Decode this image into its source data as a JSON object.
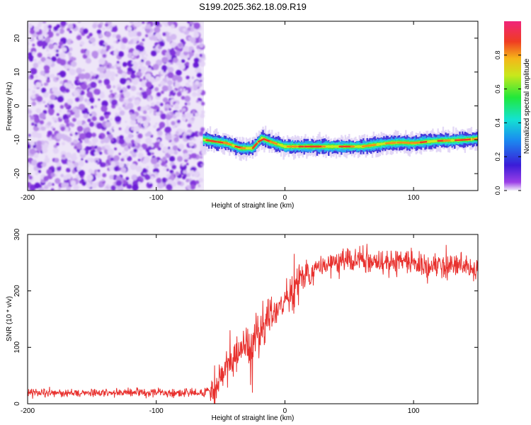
{
  "title": "S199.2025.362.18.09.R19",
  "chart_data": [
    {
      "type": "heatmap",
      "title": "S199.2025.362.18.09.R19",
      "xlabel": "Height of straight line (km)",
      "ylabel": "Frequency (Hz)",
      "xlim": [
        -200,
        150
      ],
      "ylim": [
        -25,
        25
      ],
      "x_ticks": [
        -200,
        -100,
        0,
        100
      ],
      "y_ticks": [
        -20,
        -10,
        0,
        10,
        20
      ],
      "noise_region_x": [
        -200,
        -63
      ],
      "ridge": {
        "x": [
          -63,
          -55,
          -45,
          -35,
          -25,
          -18,
          -12,
          -8,
          -4,
          0,
          5,
          10,
          20,
          30,
          40,
          50,
          60,
          70,
          80,
          90,
          100,
          110,
          120,
          130,
          140,
          150
        ],
        "y": [
          -10,
          -10.5,
          -11,
          -12.5,
          -12.5,
          -9.5,
          -10.5,
          -11,
          -11.5,
          -12,
          -12,
          -12,
          -12,
          -12,
          -12,
          -12,
          -12,
          -11.5,
          -11,
          -10.8,
          -11,
          -10.6,
          -10.3,
          -10.2,
          -10,
          -9.7
        ]
      },
      "colorbar": {
        "label": "Normalized spectral amplitude",
        "range": [
          0,
          1
        ],
        "ticks": [
          0.0,
          0.2,
          0.4,
          0.6,
          0.8
        ],
        "tick_labels": [
          "0.0",
          "0.2",
          "0.4",
          "0.6",
          "0.8"
        ]
      }
    },
    {
      "type": "line",
      "xlabel": "Height of straight line (km)",
      "ylabel": "SNR (10 * v/v)",
      "xlim": [
        -200,
        150
      ],
      "ylim": [
        0,
        300
      ],
      "x_ticks": [
        -200,
        -100,
        0,
        100
      ],
      "y_ticks": [
        0,
        100,
        200,
        300
      ],
      "series": [
        {
          "name": "SNR",
          "color": "#e8312e",
          "x": [
            -200,
            -180,
            -160,
            -140,
            -120,
            -100,
            -80,
            -65,
            -55,
            -50,
            -45,
            -40,
            -35,
            -30,
            -25,
            -20,
            -15,
            -10,
            -5,
            0,
            5,
            10,
            15,
            20,
            25,
            30,
            40,
            50,
            60,
            70,
            80,
            90,
            100,
            110,
            120,
            130,
            140,
            150
          ],
          "y": [
            20,
            20,
            20,
            20,
            20,
            20,
            20,
            20,
            25,
            45,
            60,
            75,
            90,
            100,
            110,
            125,
            140,
            155,
            170,
            185,
            200,
            212,
            222,
            232,
            240,
            245,
            250,
            255,
            255,
            252,
            250,
            250,
            250,
            248,
            245,
            245,
            240,
            235
          ]
        }
      ]
    }
  ]
}
